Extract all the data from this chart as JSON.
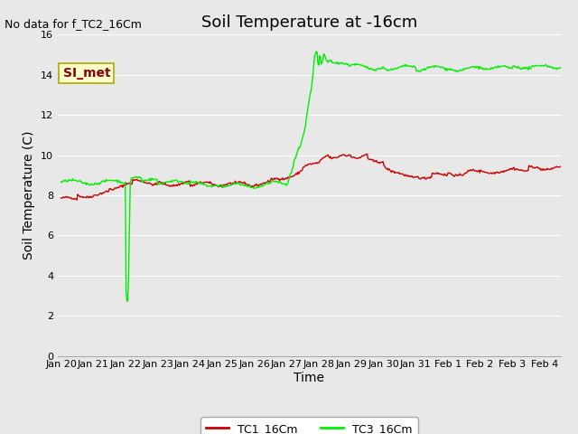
{
  "title": "Soil Temperature at -16cm",
  "xlabel": "Time",
  "ylabel": "Soil Temperature (C)",
  "no_data_text": "No data for f_TC2_16Cm",
  "si_met_label": "SI_met",
  "ylim": [
    0,
    16
  ],
  "yticks": [
    0,
    2,
    4,
    6,
    8,
    10,
    12,
    14,
    16
  ],
  "xlim_start": -0.1,
  "xlim_end": 15.5,
  "xtick_labels": [
    "Jan 20",
    "Jan 21",
    "Jan 22",
    "Jan 23",
    "Jan 24",
    "Jan 25",
    "Jan 26",
    "Jan 27",
    "Jan 28",
    "Jan 29",
    "Jan 30",
    "Jan 31",
    "Feb 1",
    "Feb 2",
    "Feb 3",
    "Feb 4"
  ],
  "xtick_positions": [
    0,
    1,
    2,
    3,
    4,
    5,
    6,
    7,
    8,
    9,
    10,
    11,
    12,
    13,
    14,
    15
  ],
  "tc1_color": "#cc0000",
  "tc3_color": "#00ee00",
  "legend_tc1": "TC1_16Cm",
  "legend_tc3": "TC3_16Cm",
  "bg_color": "#e8e8e8",
  "plot_bg_color": "#e8e8e8",
  "grid_color": "#ffffff",
  "title_fontsize": 13,
  "axis_label_fontsize": 10,
  "tick_fontsize": 8,
  "no_data_fontsize": 9,
  "si_met_fontsize": 10
}
